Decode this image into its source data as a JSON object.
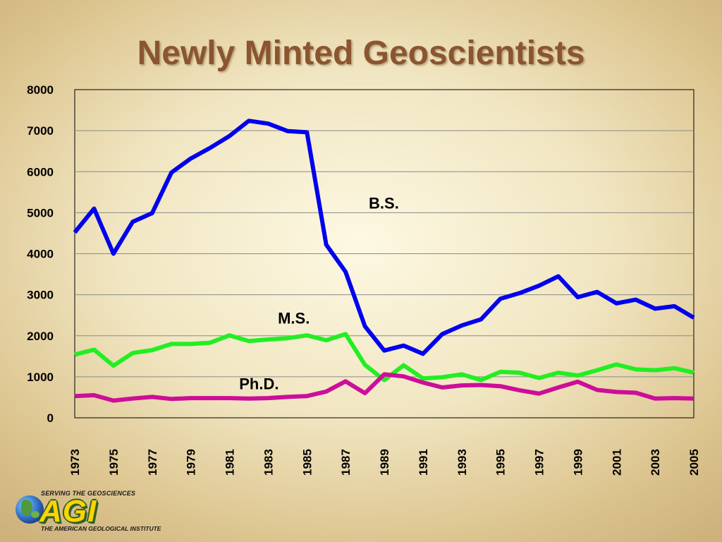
{
  "page": {
    "title": "Newly Minted Geoscientists"
  },
  "logo": {
    "tagline_top": "SERVING THE GEOSCIENCES",
    "wordmark": "AGI",
    "tagline_bottom": "THE AMERICAN GEOLOGICAL INSTITUTE"
  },
  "chart_data": {
    "type": "line",
    "title": "Newly Minted Geoscientists",
    "xlabel": "",
    "ylabel": "",
    "x": [
      1973,
      1974,
      1975,
      1976,
      1977,
      1978,
      1979,
      1980,
      1981,
      1982,
      1983,
      1984,
      1985,
      1986,
      1987,
      1988,
      1989,
      1990,
      1991,
      1992,
      1993,
      1994,
      1995,
      1996,
      1997,
      1998,
      1999,
      2000,
      2001,
      2002,
      2003,
      2004,
      2005
    ],
    "x_tick_labels": [
      "1973",
      "1975",
      "1977",
      "1979",
      "1981",
      "1983",
      "1985",
      "1987",
      "1989",
      "1991",
      "1993",
      "1995",
      "1997",
      "1999",
      "2001",
      "2003",
      "2005"
    ],
    "ylim": [
      0,
      8000
    ],
    "y_ticks": [
      0,
      1000,
      2000,
      3000,
      4000,
      5000,
      6000,
      7000,
      8000
    ],
    "grid": true,
    "series": [
      {
        "name": "B.S.",
        "color": "#0000ee",
        "values": [
          4520,
          5100,
          4000,
          4780,
          4990,
          5980,
          6320,
          6580,
          6870,
          7240,
          7170,
          6990,
          6960,
          4220,
          3560,
          2230,
          1640,
          1760,
          1560,
          2040,
          2250,
          2400,
          2900,
          3040,
          3220,
          3450,
          2940,
          3070,
          2790,
          2880,
          2660,
          2720,
          2440
        ]
      },
      {
        "name": "M.S.",
        "color": "#22ee22",
        "values": [
          1540,
          1660,
          1270,
          1580,
          1650,
          1800,
          1800,
          1830,
          2010,
          1870,
          1910,
          1940,
          2010,
          1890,
          2040,
          1290,
          920,
          1280,
          960,
          990,
          1060,
          920,
          1120,
          1100,
          970,
          1100,
          1030,
          1160,
          1300,
          1180,
          1160,
          1210,
          1100
        ]
      },
      {
        "name": "Ph.D.",
        "color": "#cc0e99",
        "values": [
          530,
          550,
          420,
          470,
          510,
          460,
          480,
          480,
          480,
          470,
          480,
          510,
          530,
          640,
          890,
          600,
          1060,
          1010,
          860,
          740,
          790,
          800,
          770,
          670,
          590,
          740,
          880,
          680,
          630,
          610,
          470,
          480,
          470
        ]
      }
    ]
  }
}
